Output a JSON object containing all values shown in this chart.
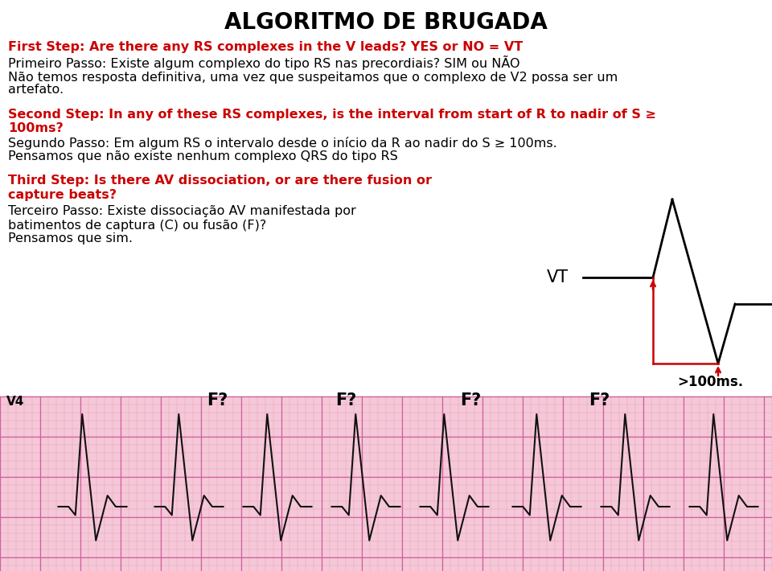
{
  "title": "ALGORITMO DE BRUGADA",
  "title_color": "#000000",
  "title_fontsize": 20,
  "bg_color": "#ffffff",
  "line1_red": "First Step: Are there any RS complexes in the V leads? YES or NO = VT",
  "line2_black": "Primeiro Passo: Existe algum complexo do tipo RS nas precordiais? SIM ou NÃO",
  "line3_black": "Não temos resposta definitiva, uma vez que suspeitamos que o complexo de V2 possa ser um",
  "line4_black": "artefato.",
  "line5_red_1": "Second Step: In any of these RS complexes, is the interval from start of R to nadir of S ≥",
  "line5_red_2": "100ms?",
  "line6_black": "Segundo Passo: Em algum RS o intervalo desde o início da R ao nadir do S ≥ 100ms.",
  "line7_black": "Pensamos que não existe nenhum complexo QRS do tipo RS",
  "line8_red_1": "Third Step: Is there AV dissociation, or are there fusion or",
  "line8_red_2": "capture beats?",
  "line9_black": "Terceiro Passo: Existe dissociação AV manifestada por",
  "line10_black": "batimentos de captura (C) ou fusão (F)?",
  "line11_black": "Pensamos que sim.",
  "vt_label": "VT",
  "ms_label": ">100ms.",
  "ecg_labels": [
    "V4",
    "F?",
    "F?",
    "F?",
    "F?"
  ],
  "red_color": "#cc0000",
  "black_color": "#000000",
  "text_fontsize": 11.5,
  "title_fs": 20,
  "ecg_strip_bg": "#f5c8d8",
  "ecg_grid_small": "#e8a0bc",
  "ecg_grid_large": "#d060a0"
}
